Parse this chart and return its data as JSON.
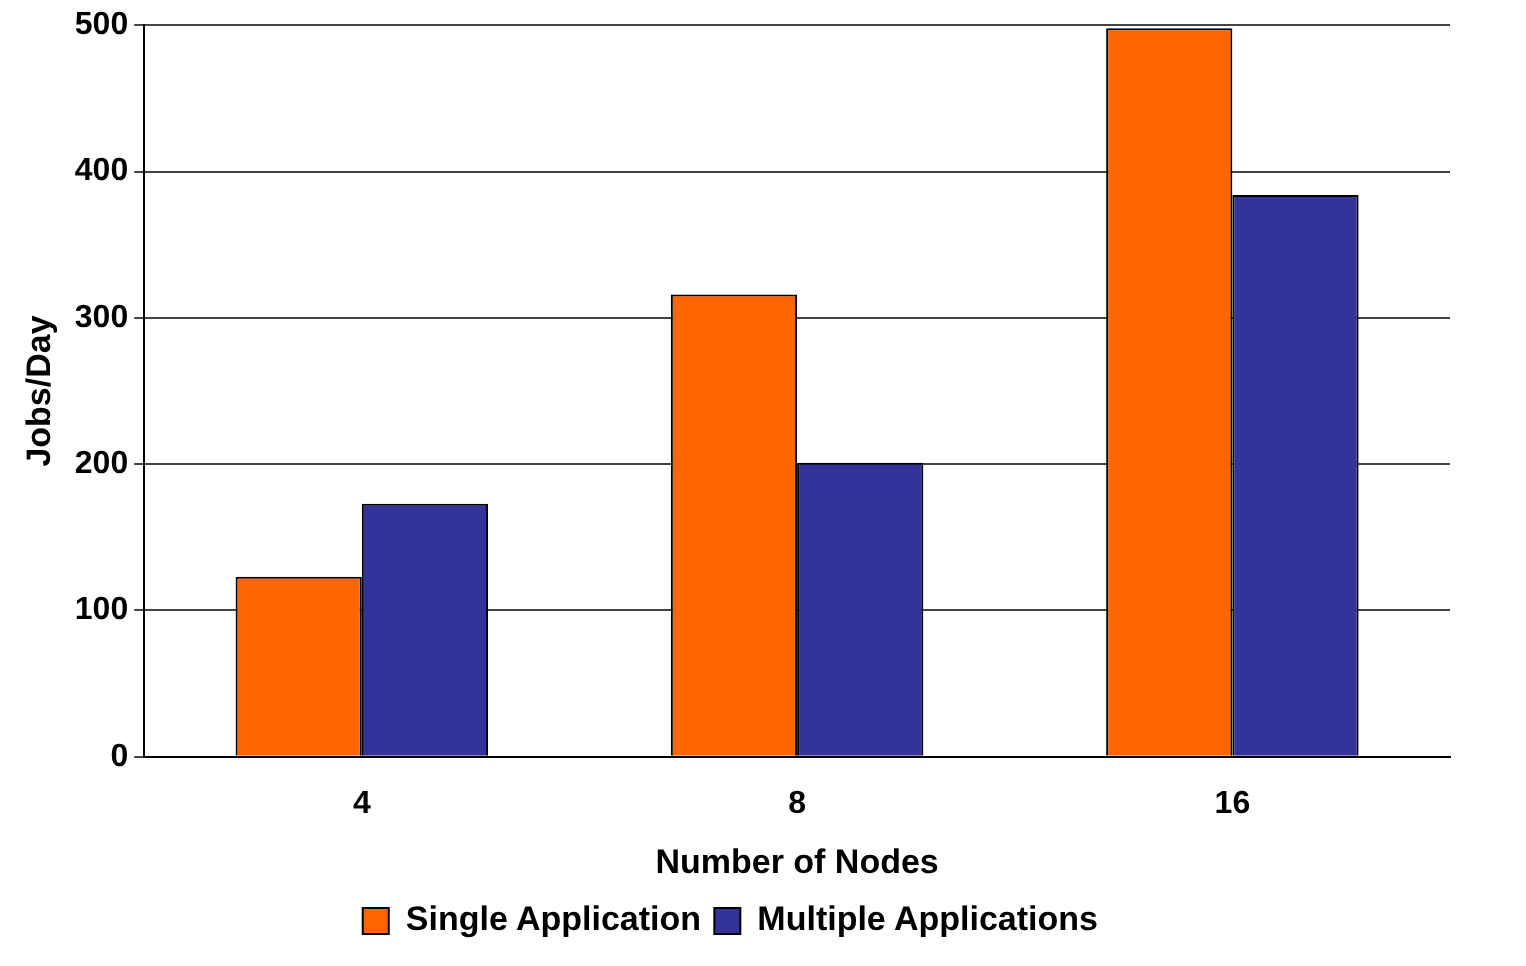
{
  "chart_data": {
    "type": "bar",
    "xlabel": "Number of Nodes",
    "ylabel": "Jobs/Day",
    "categories": [
      "4",
      "8",
      "16"
    ],
    "series": [
      {
        "name": "Single Application",
        "color": "#ff6600",
        "values": [
          123,
          316,
          498
        ]
      },
      {
        "name": "Multiple Applications",
        "color": "#333399",
        "values": [
          173,
          201,
          384
        ]
      }
    ],
    "ylim": [
      0,
      500
    ],
    "yticks": [
      0,
      100,
      200,
      300,
      400,
      500
    ],
    "grid": "y",
    "legend": "bottom"
  }
}
